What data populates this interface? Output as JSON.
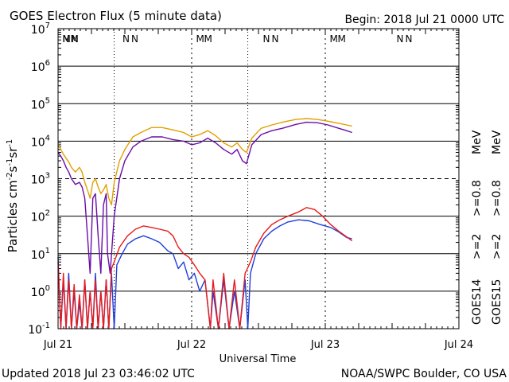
{
  "chart_data": {
    "type": "line",
    "title": "GOES Electron Flux (5 minute data)",
    "begin_label": "Begin: 2018 Jul 21 0000 UTC",
    "xlabel": "Universal Time",
    "ylabel_parts": {
      "a": "Particles cm",
      "b": "-2",
      "c": "s",
      "d": "-1",
      "e": "sr",
      "f": "-1"
    },
    "yscale": "log",
    "ylim": [
      0.1,
      10000000
    ],
    "xlim_days": [
      0,
      3
    ],
    "x_ticks": [
      {
        "day": 0,
        "label": "Jul 21"
      },
      {
        "day": 1,
        "label": "Jul 22"
      },
      {
        "day": 2,
        "label": "Jul 23"
      },
      {
        "day": 3,
        "label": "Jul 24"
      }
    ],
    "y_ticks": [
      {
        "exp": -1,
        "base": "10",
        "sup": "-1"
      },
      {
        "exp": 0,
        "base": "10",
        "sup": "0"
      },
      {
        "exp": 1,
        "base": "10",
        "sup": "1"
      },
      {
        "exp": 2,
        "base": "10",
        "sup": "2"
      },
      {
        "exp": 3,
        "base": "10",
        "sup": "3"
      },
      {
        "exp": 4,
        "base": "10",
        "sup": "4"
      },
      {
        "exp": 5,
        "base": "10",
        "sup": "5"
      },
      {
        "exp": 6,
        "base": "10",
        "sup": "6"
      },
      {
        "exp": 7,
        "base": "10",
        "sup": "7"
      }
    ],
    "threshold_exp": 3,
    "midnight_markers": [
      {
        "day": 0.08,
        "m": "M",
        "n": "N"
      },
      {
        "day": 0.53,
        "n": "N"
      },
      {
        "day": 1.08,
        "m": "M"
      },
      {
        "day": 1.58,
        "n": "N"
      },
      {
        "day": 2.08,
        "m": "M"
      },
      {
        "day": 2.58,
        "n": "N"
      }
    ],
    "marker_columns": [
      {
        "day": 0.42,
        "style": "solid"
      },
      {
        "day": 1.0,
        "style": "dashed"
      },
      {
        "day": 1.42,
        "style": "solid"
      },
      {
        "day": 2.0,
        "style": "dashed"
      }
    ],
    "legend": {
      "sat_label_1": "GOES14",
      "sat_label_2": "GOES15",
      "entries": [
        {
          "text": ">=2",
          "color": "#1f3fd8"
        },
        {
          "text": ">=2",
          "color": "#e8191c"
        },
        {
          "text": ">=0.8",
          "color": "#6a0da8"
        },
        {
          "text": ">=0.8",
          "color": "#e0a000"
        },
        {
          "text": "MeV",
          "color": "#000000"
        }
      ]
    },
    "series": [
      {
        "name": "GOES14 >=0.8 MeV",
        "color": "#6a0da8",
        "points": [
          [
            0.0,
            5000
          ],
          [
            0.02,
            4000
          ],
          [
            0.04,
            3000
          ],
          [
            0.06,
            2000
          ],
          [
            0.08,
            1500
          ],
          [
            0.1,
            1000
          ],
          [
            0.13,
            700
          ],
          [
            0.16,
            800
          ],
          [
            0.18,
            600
          ],
          [
            0.2,
            300
          ],
          [
            0.22,
            30
          ],
          [
            0.24,
            3
          ],
          [
            0.26,
            300
          ],
          [
            0.28,
            400
          ],
          [
            0.3,
            30
          ],
          [
            0.32,
            3
          ],
          [
            0.34,
            200
          ],
          [
            0.36,
            400
          ],
          [
            0.37,
            10
          ],
          [
            0.39,
            3
          ],
          [
            0.42,
            100
          ],
          [
            0.46,
            1000
          ],
          [
            0.5,
            3000
          ],
          [
            0.56,
            7000
          ],
          [
            0.62,
            10000
          ],
          [
            0.7,
            13000
          ],
          [
            0.78,
            13000
          ],
          [
            0.86,
            11000
          ],
          [
            0.94,
            10000
          ],
          [
            1.0,
            8000
          ],
          [
            1.06,
            9000
          ],
          [
            1.12,
            12000
          ],
          [
            1.18,
            9000
          ],
          [
            1.24,
            6000
          ],
          [
            1.3,
            4500
          ],
          [
            1.34,
            6000
          ],
          [
            1.38,
            3000
          ],
          [
            1.41,
            2500
          ],
          [
            1.45,
            8000
          ],
          [
            1.52,
            15000
          ],
          [
            1.6,
            19000
          ],
          [
            1.68,
            22000
          ],
          [
            1.78,
            28000
          ],
          [
            1.86,
            32000
          ],
          [
            1.94,
            31000
          ],
          [
            2.02,
            27000
          ],
          [
            2.1,
            22000
          ],
          [
            2.16,
            19000
          ],
          [
            2.2,
            17000
          ]
        ]
      },
      {
        "name": "GOES15 >=0.8 MeV",
        "color": "#e0a000",
        "points": [
          [
            0.0,
            8000
          ],
          [
            0.02,
            6000
          ],
          [
            0.04,
            4500
          ],
          [
            0.06,
            3500
          ],
          [
            0.08,
            2800
          ],
          [
            0.1,
            2000
          ],
          [
            0.13,
            1500
          ],
          [
            0.16,
            2000
          ],
          [
            0.18,
            1500
          ],
          [
            0.2,
            800
          ],
          [
            0.22,
            500
          ],
          [
            0.24,
            300
          ],
          [
            0.26,
            800
          ],
          [
            0.28,
            1000
          ],
          [
            0.3,
            600
          ],
          [
            0.32,
            400
          ],
          [
            0.34,
            500
          ],
          [
            0.36,
            700
          ],
          [
            0.38,
            300
          ],
          [
            0.4,
            200
          ],
          [
            0.42,
            800
          ],
          [
            0.46,
            3000
          ],
          [
            0.5,
            6000
          ],
          [
            0.56,
            13000
          ],
          [
            0.62,
            17000
          ],
          [
            0.7,
            23000
          ],
          [
            0.78,
            23000
          ],
          [
            0.86,
            20000
          ],
          [
            0.94,
            17000
          ],
          [
            1.0,
            13000
          ],
          [
            1.06,
            15000
          ],
          [
            1.12,
            19000
          ],
          [
            1.18,
            14000
          ],
          [
            1.24,
            9000
          ],
          [
            1.3,
            7000
          ],
          [
            1.34,
            9000
          ],
          [
            1.38,
            6000
          ],
          [
            1.41,
            5000
          ],
          [
            1.45,
            12000
          ],
          [
            1.52,
            22000
          ],
          [
            1.6,
            27000
          ],
          [
            1.68,
            32000
          ],
          [
            1.78,
            38000
          ],
          [
            1.86,
            40000
          ],
          [
            1.94,
            38000
          ],
          [
            2.02,
            34000
          ],
          [
            2.1,
            30000
          ],
          [
            2.16,
            27000
          ],
          [
            2.2,
            25000
          ]
        ]
      },
      {
        "name": "GOES14 >=2 MeV",
        "color": "#1f3fd8",
        "points": [
          [
            0.0,
            8
          ],
          [
            0.02,
            0.1
          ],
          [
            0.04,
            2
          ],
          [
            0.06,
            0.1
          ],
          [
            0.08,
            3
          ],
          [
            0.1,
            0.1
          ],
          [
            0.12,
            1
          ],
          [
            0.14,
            0.1
          ],
          [
            0.16,
            0.5
          ],
          [
            0.18,
            0.1
          ],
          [
            0.2,
            2
          ],
          [
            0.22,
            0.1
          ],
          [
            0.24,
            1
          ],
          [
            0.26,
            0.1
          ],
          [
            0.28,
            3
          ],
          [
            0.3,
            0.1
          ],
          [
            0.32,
            1
          ],
          [
            0.34,
            0.1
          ],
          [
            0.36,
            2
          ],
          [
            0.38,
            0.1
          ],
          [
            0.4,
            3
          ],
          [
            0.42,
            0.1
          ],
          [
            0.44,
            5
          ],
          [
            0.48,
            10
          ],
          [
            0.52,
            18
          ],
          [
            0.58,
            25
          ],
          [
            0.64,
            30
          ],
          [
            0.7,
            25
          ],
          [
            0.76,
            20
          ],
          [
            0.82,
            12
          ],
          [
            0.86,
            10
          ],
          [
            0.9,
            4
          ],
          [
            0.94,
            6
          ],
          [
            0.98,
            2
          ],
          [
            1.02,
            3
          ],
          [
            1.06,
            1
          ],
          [
            1.1,
            2
          ],
          [
            1.14,
            0.1
          ],
          [
            1.16,
            1
          ],
          [
            1.2,
            0.1
          ],
          [
            1.24,
            2
          ],
          [
            1.28,
            0.1
          ],
          [
            1.32,
            1
          ],
          [
            1.36,
            0.1
          ],
          [
            1.4,
            2
          ],
          [
            1.42,
            0.1
          ],
          [
            1.44,
            3
          ],
          [
            1.48,
            10
          ],
          [
            1.54,
            25
          ],
          [
            1.6,
            40
          ],
          [
            1.66,
            55
          ],
          [
            1.72,
            70
          ],
          [
            1.8,
            80
          ],
          [
            1.88,
            75
          ],
          [
            1.96,
            60
          ],
          [
            2.04,
            50
          ],
          [
            2.1,
            38
          ],
          [
            2.16,
            27
          ],
          [
            2.2,
            25
          ]
        ]
      },
      {
        "name": "GOES15 >=2 MeV",
        "color": "#e8191c",
        "points": [
          [
            0.0,
            6
          ],
          [
            0.02,
            0.1
          ],
          [
            0.04,
            3
          ],
          [
            0.06,
            0.1
          ],
          [
            0.08,
            2
          ],
          [
            0.1,
            0.1
          ],
          [
            0.12,
            1.5
          ],
          [
            0.14,
            0.1
          ],
          [
            0.16,
            0.8
          ],
          [
            0.18,
            0.1
          ],
          [
            0.2,
            2
          ],
          [
            0.22,
            0.1
          ],
          [
            0.24,
            1
          ],
          [
            0.26,
            0.1
          ],
          [
            0.28,
            2
          ],
          [
            0.3,
            0.1
          ],
          [
            0.32,
            1
          ],
          [
            0.34,
            0.1
          ],
          [
            0.36,
            2
          ],
          [
            0.38,
            0.1
          ],
          [
            0.4,
            4
          ],
          [
            0.42,
            6
          ],
          [
            0.46,
            15
          ],
          [
            0.52,
            30
          ],
          [
            0.58,
            45
          ],
          [
            0.64,
            55
          ],
          [
            0.7,
            50
          ],
          [
            0.76,
            45
          ],
          [
            0.82,
            40
          ],
          [
            0.86,
            30
          ],
          [
            0.9,
            15
          ],
          [
            0.94,
            10
          ],
          [
            0.98,
            8
          ],
          [
            1.02,
            5
          ],
          [
            1.06,
            3
          ],
          [
            1.1,
            2
          ],
          [
            1.14,
            0.1
          ],
          [
            1.16,
            2
          ],
          [
            1.2,
            0.1
          ],
          [
            1.24,
            3
          ],
          [
            1.28,
            0.1
          ],
          [
            1.32,
            2
          ],
          [
            1.36,
            0.1
          ],
          [
            1.4,
            3
          ],
          [
            1.44,
            6
          ],
          [
            1.48,
            15
          ],
          [
            1.54,
            35
          ],
          [
            1.6,
            60
          ],
          [
            1.66,
            80
          ],
          [
            1.72,
            100
          ],
          [
            1.8,
            130
          ],
          [
            1.86,
            170
          ],
          [
            1.92,
            150
          ],
          [
            1.98,
            100
          ],
          [
            2.04,
            60
          ],
          [
            2.1,
            40
          ],
          [
            2.16,
            28
          ],
          [
            2.2,
            22
          ]
        ]
      }
    ]
  },
  "footer": {
    "updated": "Updated 2018 Jul 23 03:46:02 UTC",
    "source": "NOAA/SWPC Boulder, CO USA"
  }
}
